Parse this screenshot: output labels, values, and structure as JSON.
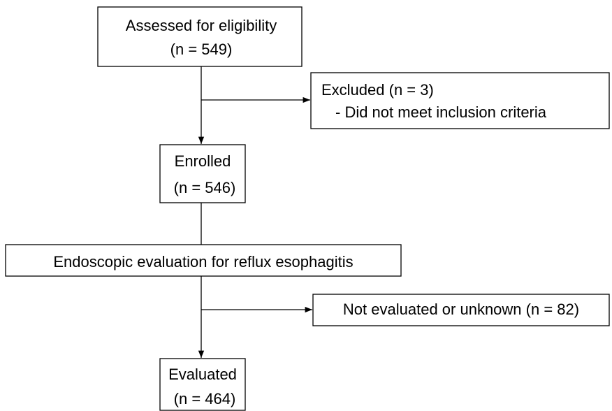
{
  "nodes": [
    {
      "lines": [
        "Assessed for eligibility",
        "(n = 549)"
      ]
    },
    {
      "lines": [
        "Excluded (n = 3)",
        "- Did not meet inclusion criteria"
      ]
    },
    {
      "lines": [
        "Enrolled",
        "(n = 546)"
      ]
    },
    {
      "lines": [
        "Endoscopic evaluation for reflux esophagitis"
      ]
    },
    {
      "lines": [
        "Not evaluated or unknown (n = 82)"
      ]
    },
    {
      "lines": [
        "Evaluated",
        "(n = 464)"
      ]
    }
  ]
}
